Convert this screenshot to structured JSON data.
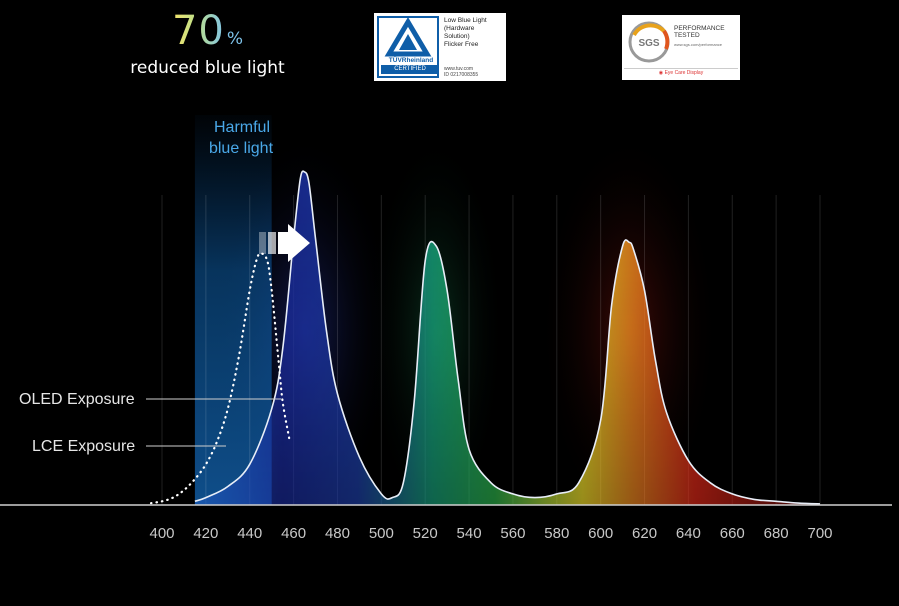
{
  "headline": {
    "value": "70",
    "unit": "%",
    "subtitle": "reduced blue light"
  },
  "badges": {
    "tuv": {
      "brand": "TÜVRheinland",
      "certified": "CERTIFIED",
      "line1": "Low Blue Light",
      "line2": "(Hardware",
      "line3": "Solution)",
      "line4": "Flicker Free",
      "url": "www.tuv.com",
      "id": "ID 0217008355",
      "color": "#0f5ea8"
    },
    "sgs": {
      "logo": "SGS",
      "line1": "PERFORMANCE",
      "line2": "TESTED",
      "url": "www.sgs.com/performance",
      "footer": "Eye Care Display",
      "ring_colors": [
        "#e8a21b",
        "#e0561e",
        "#999999"
      ]
    }
  },
  "chart_data": {
    "type": "line",
    "x_ticks": [
      "400",
      "420",
      "440",
      "460",
      "480",
      "500",
      "520",
      "540",
      "560",
      "580",
      "600",
      "620",
      "640",
      "660",
      "680",
      "700"
    ],
    "xlim": [
      400,
      700
    ],
    "annotations": {
      "harmful_line1": "Harmful",
      "harmful_line2": "blue light",
      "oled_label": "OLED Exposure",
      "lce_label": "LCE Exposure",
      "harmful_range": [
        415,
        450
      ]
    },
    "series": [
      {
        "style": "solid",
        "x": [
          415,
          420,
          430,
          440,
          450,
          455,
          460,
          463,
          465,
          467,
          470,
          475,
          480,
          490,
          500,
          505,
          510,
          515,
          520,
          525,
          530,
          535,
          540,
          550,
          560,
          570,
          580,
          590,
          600,
          605,
          610,
          613,
          615,
          620,
          625,
          630,
          640,
          650,
          660,
          670,
          680,
          690,
          700
        ],
        "y": [
          1,
          2,
          5,
          11,
          26,
          42,
          72,
          88,
          90,
          87,
          72,
          47,
          30,
          13,
          3,
          2,
          6,
          28,
          66,
          70,
          58,
          34,
          15,
          6,
          3,
          2,
          3,
          6,
          23,
          54,
          70,
          71,
          69,
          58,
          39,
          25,
          12,
          6,
          3,
          1.5,
          1,
          0.5,
          0.3
        ]
      },
      {
        "style": "dotted",
        "x": [
          395,
          400,
          405,
          410,
          415,
          420,
          425,
          430,
          435,
          440,
          443,
          445,
          448,
          450,
          453,
          455,
          458
        ],
        "y": [
          0.5,
          1,
          2,
          4,
          7,
          11,
          17,
          26,
          40,
          58,
          66,
          68,
          66,
          58,
          40,
          28,
          18
        ]
      }
    ],
    "grid": true
  }
}
